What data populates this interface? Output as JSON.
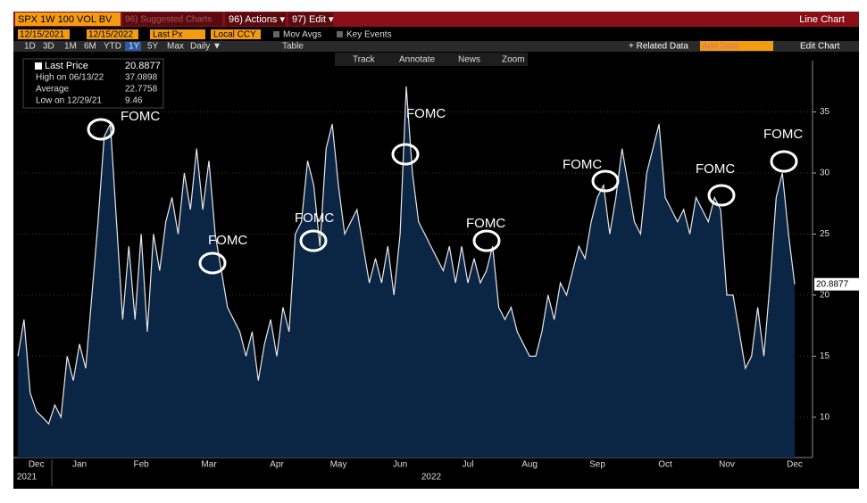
{
  "toolbar": {
    "security": "SPX 1W 100 VOL BV",
    "suggested": "96) Suggested Charts",
    "actions": "96) Actions ▾",
    "edit": "97) Edit ▾",
    "chart_type": "Line Chart",
    "start": "12/15/2021",
    "end": "12/15/2022",
    "field": "Last Px",
    "currency": "Local CCY",
    "mov_avgs": "Mov Avgs",
    "key_events": "Key Events",
    "periods": [
      "1D",
      "3D",
      "1M",
      "6M",
      "YTD",
      "1Y",
      "5Y",
      "Max"
    ],
    "frequency": "Daily ▼",
    "table": "Table",
    "related": "+ Related Data",
    "add_data": "Add Data",
    "edit_chart": "Edit Chart",
    "tools": [
      "Track",
      "Annotate",
      "News",
      "Zoom"
    ]
  },
  "legend": {
    "items": [
      {
        "label": "Last Price",
        "value": 20.8877
      },
      {
        "label": "High on 06/13/22",
        "value": 37.0898
      },
      {
        "label": "Average",
        "value": 22.7758
      },
      {
        "label": "Low on 12/29/21",
        "value": 9.46
      }
    ]
  },
  "chart_data": {
    "type": "area",
    "color": "#0b2545",
    "line_color": "#e8e8e8",
    "annotations": [
      "FOMC",
      "FOMC",
      "FOMC",
      "FOMC",
      "FOMC",
      "FOMC",
      "FOMC",
      "FOMC"
    ],
    "years": [
      "2021",
      "2022"
    ],
    "categories": [
      null,
      null,
      null,
      "Dec",
      null,
      null,
      null,
      null,
      null,
      null,
      "Jan",
      null,
      null,
      null,
      null,
      null,
      null,
      null,
      null,
      null,
      "Feb",
      null,
      null,
      null,
      null,
      null,
      null,
      null,
      null,
      null,
      null,
      "Mar",
      null,
      null,
      null,
      null,
      null,
      null,
      null,
      null,
      null,
      null,
      "Apr",
      null,
      null,
      null,
      null,
      null,
      null,
      null,
      null,
      null,
      "May",
      null,
      null,
      null,
      null,
      null,
      null,
      null,
      null,
      null,
      "Jun",
      null,
      null,
      null,
      null,
      null,
      null,
      null,
      null,
      null,
      null,
      "Jul",
      null,
      null,
      null,
      null,
      null,
      null,
      null,
      null,
      null,
      "Aug",
      null,
      null,
      null,
      null,
      null,
      null,
      null,
      null,
      null,
      null,
      "Sep",
      null,
      null,
      null,
      null,
      null,
      null,
      null,
      null,
      null,
      null,
      "Oct",
      null,
      null,
      null,
      null,
      null,
      null,
      null,
      null,
      null,
      "Nov",
      null,
      null,
      null,
      null,
      null,
      null,
      null,
      null,
      null,
      null,
      "Dec"
    ],
    "values": [
      15,
      18,
      12,
      10.5,
      10,
      9.46,
      11,
      10,
      15,
      13,
      16,
      14,
      20,
      26,
      33,
      34,
      26,
      18,
      24,
      18,
      25,
      17,
      25,
      22,
      26,
      28,
      25,
      30,
      27,
      32,
      27,
      31,
      25,
      22,
      19,
      18,
      17,
      15,
      17,
      13,
      16,
      18,
      15,
      19,
      17,
      25,
      26,
      31,
      29,
      24,
      32,
      34,
      29,
      25,
      26,
      27,
      24,
      21,
      23,
      21,
      24,
      20,
      25,
      37.0898,
      30,
      26,
      25,
      24,
      23,
      22,
      24,
      21,
      24,
      21,
      23,
      21,
      22,
      24,
      19,
      18,
      19,
      17,
      16,
      15,
      15,
      17,
      20,
      18,
      21,
      20,
      22,
      24,
      23,
      26,
      28,
      29,
      25,
      28,
      32,
      29,
      26,
      25,
      30,
      32,
      34,
      28,
      27,
      26,
      27,
      25,
      28,
      27,
      26,
      28,
      27,
      20,
      20,
      17,
      14,
      15,
      19,
      15,
      21,
      28,
      30,
      25,
      20.8877
    ],
    "ylim": [
      6.7,
      39.2
    ],
    "yticks": [
      10,
      15,
      20,
      25,
      30,
      35
    ],
    "grid": true
  }
}
